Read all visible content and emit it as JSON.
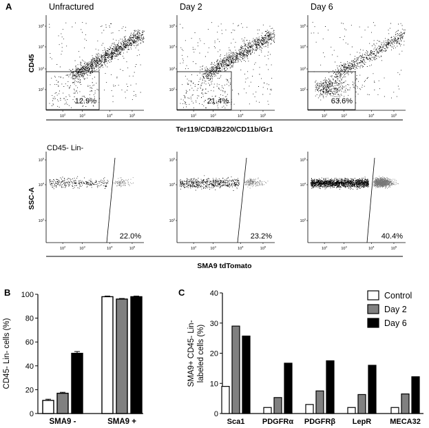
{
  "panel_labels": {
    "a": "A",
    "b": "B",
    "c": "C"
  },
  "top_row": {
    "titles": [
      "Unfractured",
      "Day 2",
      "Day 6"
    ],
    "y_label": "CD45",
    "x_label": "Ter119/CD3/B220/CD11b/Gr1",
    "gate_percents": [
      "12.9%",
      "21.4%",
      "63.6%"
    ],
    "x_ticks": [
      "10^2",
      "10^3",
      "10^4",
      "10^5"
    ],
    "y_ticks": [
      "10^5",
      "10^4",
      "10^3",
      "10^2"
    ]
  },
  "middle_row": {
    "subtitle": "CD45- Lin-",
    "y_label": "SSC-A",
    "x_label": "SMA9 tdTomato",
    "gate_percents": [
      "22.0%",
      "23.2%",
      "40.4%"
    ],
    "x_ticks": [
      "10^2",
      "10^3",
      "10^4",
      "10^5"
    ],
    "y_ticks": [
      "10^5",
      "10^4",
      "10^3"
    ]
  },
  "colors": {
    "control": "#ffffff",
    "day2": "#808080",
    "day6": "#000000",
    "dots": "#000000",
    "tomato_dots": "#777777"
  },
  "chart_data": [
    {
      "type": "bar",
      "panel": "B",
      "categories": [
        "SMA9 -",
        "SMA9 +"
      ],
      "series": [
        {
          "values": [
            11,
            98
          ]
        },
        {
          "values": [
            17,
            96
          ]
        },
        {
          "values": [
            50.5,
            98
          ]
        }
      ],
      "errors": [
        [
          1,
          0.5
        ],
        [
          0.8,
          0.5
        ],
        [
          1.5,
          0.5
        ]
      ],
      "ylabel": "CD45- Lin- cells (%)",
      "ylim": [
        0,
        100
      ],
      "yticks": [
        0,
        20,
        40,
        60,
        80,
        100
      ]
    },
    {
      "type": "bar",
      "panel": "C",
      "categories": [
        "Sca1",
        "PDGFRα",
        "PDGFRβ",
        "LepR",
        "MECA32"
      ],
      "series": [
        {
          "name": "Control",
          "values": [
            9,
            2,
            3,
            2,
            2
          ]
        },
        {
          "name": "Day 2",
          "values": [
            29,
            5.3,
            7.5,
            6.3,
            6.5
          ]
        },
        {
          "name": "Day 6",
          "values": [
            25.7,
            16.7,
            17.5,
            16,
            12.2
          ]
        }
      ],
      "ylabel": "SMA9+ CD45- Lin- labeled cells (%)",
      "ylabel_lines": [
        "SMA9+ CD45- Lin-",
        "labeled cells (%)"
      ],
      "ylim": [
        0,
        40
      ],
      "yticks": [
        0,
        10,
        20,
        30,
        40
      ],
      "legend": "top-right"
    }
  ]
}
